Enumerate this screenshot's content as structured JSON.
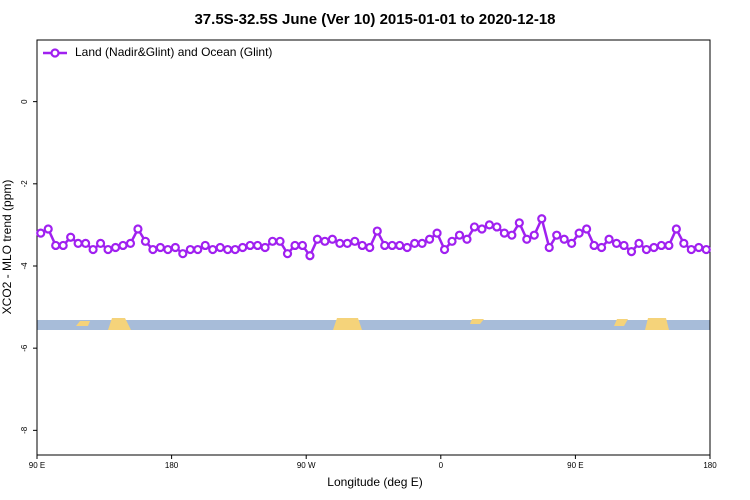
{
  "chart_data": {
    "type": "line",
    "title": "37.5S-32.5S June (Ver 10)   2015-01-01 to 2020-12-18",
    "x_label": "Longitude (deg E)",
    "y_label": "XCO2 - MLO trend (ppm)",
    "x": [
      92.5,
      97.5,
      102.5,
      107.5,
      112.5,
      117.5,
      122.5,
      127.5,
      132.5,
      137.5,
      142.5,
      147.5,
      152.5,
      157.5,
      162.5,
      167.5,
      172.5,
      177.5,
      182.5,
      187.5,
      192.5,
      197.5,
      202.5,
      207.5,
      212.5,
      217.5,
      222.5,
      227.5,
      232.5,
      237.5,
      242.5,
      247.5,
      252.5,
      257.5,
      262.5,
      267.5,
      272.5,
      277.5,
      282.5,
      287.5,
      292.5,
      297.5,
      302.5,
      307.5,
      312.5,
      317.5,
      322.5,
      327.5,
      332.5,
      337.5,
      342.5,
      347.5,
      352.5,
      357.5,
      362.5,
      367.5,
      372.5,
      377.5,
      382.5,
      387.5,
      392.5,
      397.5,
      402.5,
      407.5,
      412.5,
      417.5,
      422.5,
      427.5,
      432.5,
      437.5,
      442.5,
      447.5,
      452.5,
      457.5,
      462.5,
      467.5,
      472.5,
      477.5,
      482.5,
      487.5,
      492.5,
      497.5,
      502.5,
      507.5,
      512.5,
      517.5,
      522.5,
      527.5,
      532.5,
      537.5
    ],
    "series": [
      {
        "name": "Land (Nadir&Glint) and Ocean (Glint)",
        "color": "#a020f0",
        "values": [
          -3.2,
          -3.1,
          -3.5,
          -3.5,
          -3.3,
          -3.45,
          -3.45,
          -3.6,
          -3.45,
          -3.6,
          -3.55,
          -3.5,
          -3.45,
          -3.1,
          -3.4,
          -3.6,
          -3.55,
          -3.6,
          -3.55,
          -3.7,
          -3.6,
          -3.6,
          -3.5,
          -3.6,
          -3.55,
          -3.6,
          -3.6,
          -3.55,
          -3.5,
          -3.5,
          -3.55,
          -3.4,
          -3.4,
          -3.7,
          -3.5,
          -3.5,
          -3.75,
          -3.35,
          -3.4,
          -3.35,
          -3.45,
          -3.45,
          -3.4,
          -3.5,
          -3.55,
          -3.15,
          -3.5,
          -3.5,
          -3.5,
          -3.55,
          -3.45,
          -3.45,
          -3.35,
          -3.2,
          -3.6,
          -3.4,
          -3.25,
          -3.35,
          -3.05,
          -3.1,
          -3.0,
          -3.05,
          -3.2,
          -3.25,
          -2.95,
          -3.35,
          -3.25,
          -2.85,
          -3.55,
          -3.25,
          -3.35,
          -3.45,
          -3.2,
          -3.1,
          -3.5,
          -3.55,
          -3.35,
          -3.45,
          -3.5,
          -3.65,
          -3.45,
          -3.6,
          -3.55,
          -3.5,
          -3.5,
          -3.1,
          -3.45,
          -3.6,
          -3.55,
          -3.6
        ]
      }
    ],
    "xlim": [
      90,
      540
    ],
    "xticks": [
      {
        "value": 90,
        "label": "90 E"
      },
      {
        "value": 180,
        "label": "180"
      },
      {
        "value": 270,
        "label": "90 W"
      },
      {
        "value": 360,
        "label": "0"
      },
      {
        "value": 450,
        "label": "90 E"
      },
      {
        "value": 540,
        "label": "180"
      }
    ],
    "ylim": [
      -8.6,
      1.5
    ],
    "yticks": [
      0,
      -2,
      -4,
      -6,
      -8
    ],
    "legend": "top-left"
  }
}
